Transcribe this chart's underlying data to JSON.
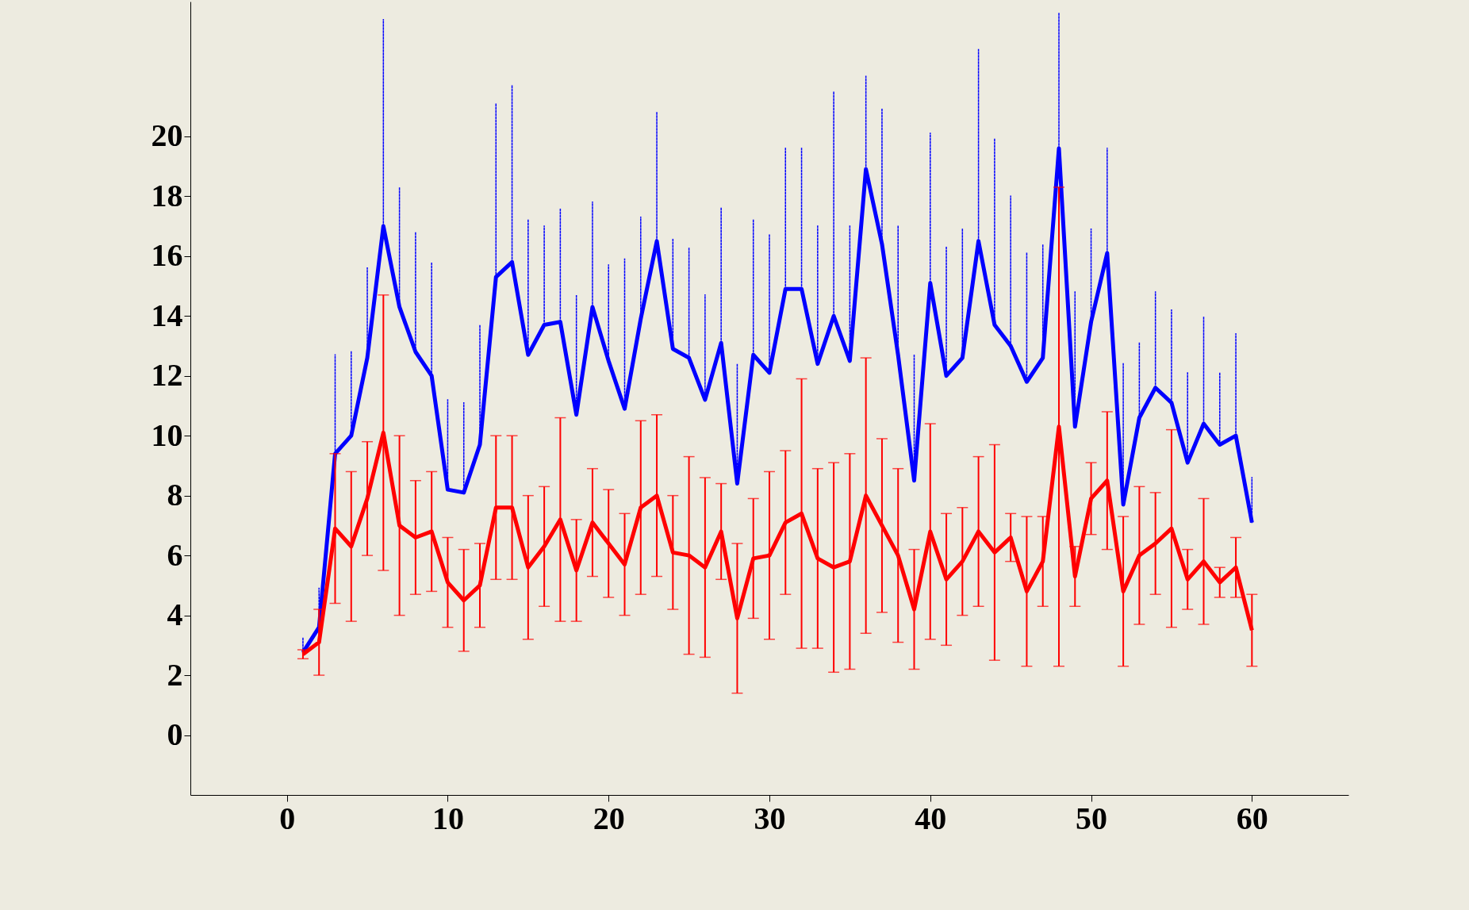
{
  "chart_data": {
    "type": "line",
    "x": [
      1,
      2,
      3,
      4,
      5,
      6,
      7,
      8,
      9,
      10,
      11,
      12,
      13,
      14,
      15,
      16,
      17,
      18,
      19,
      20,
      21,
      22,
      23,
      24,
      25,
      26,
      27,
      28,
      29,
      30,
      31,
      32,
      33,
      34,
      35,
      36,
      37,
      38,
      39,
      40,
      41,
      42,
      43,
      44,
      45,
      46,
      47,
      48,
      49,
      50,
      51,
      52,
      53,
      54,
      55,
      56,
      57,
      58,
      59,
      60
    ],
    "series": [
      {
        "color": "#0000ff",
        "line_style": "solid",
        "values": [
          2.76,
          3.6,
          9.4,
          10.0,
          12.6,
          17.0,
          14.3,
          12.8,
          12.0,
          8.2,
          8.1,
          9.7,
          15.3,
          15.8,
          12.7,
          13.7,
          13.8,
          10.7,
          14.3,
          12.5,
          10.9,
          13.9,
          16.5,
          12.9,
          12.6,
          11.2,
          13.1,
          8.4,
          12.7,
          12.1,
          14.9,
          14.9,
          12.4,
          14.0,
          12.5,
          18.9,
          16.4,
          12.7,
          8.5,
          15.1,
          12.0,
          12.6,
          16.5,
          13.7,
          13.0,
          11.8,
          12.6,
          19.6,
          10.3,
          13.8,
          16.1,
          7.7,
          10.6,
          11.6,
          11.1,
          9.1,
          10.4,
          9.7,
          10.0,
          7.1
        ],
        "errors": [
          0.5,
          1.3,
          3.3,
          2.8,
          3.0,
          6.9,
          4.0,
          4.0,
          3.8,
          3.0,
          3.0,
          4.0,
          5.8,
          5.9,
          4.5,
          3.3,
          3.8,
          4.0,
          3.5,
          3.2,
          5.0,
          3.4,
          4.3,
          3.7,
          3.7,
          3.5,
          4.5,
          4.0,
          4.5,
          4.6,
          4.7,
          4.7,
          4.6,
          7.5,
          4.5,
          3.1,
          4.5,
          4.3,
          4.2,
          5.0,
          4.3,
          4.3,
          6.4,
          6.2,
          5.0,
          4.3,
          3.8,
          4.5,
          4.5,
          3.1,
          3.5,
          4.7,
          2.5,
          3.2,
          3.1,
          3.0,
          3.6,
          2.4,
          3.4,
          1.5
        ]
      },
      {
        "color": "#ff0000",
        "line_style": "solid",
        "values": [
          2.7,
          3.1,
          6.9,
          6.3,
          7.9,
          10.1,
          7.0,
          6.6,
          6.8,
          5.1,
          4.5,
          5.0,
          7.6,
          7.6,
          5.6,
          6.3,
          7.2,
          5.5,
          7.1,
          6.4,
          5.7,
          7.6,
          8.0,
          6.1,
          6.0,
          5.6,
          6.8,
          3.9,
          5.9,
          6.0,
          7.1,
          7.4,
          5.9,
          5.6,
          5.8,
          8.0,
          7.0,
          6.0,
          4.2,
          6.8,
          5.2,
          5.8,
          6.8,
          6.1,
          6.6,
          4.8,
          5.8,
          10.3,
          5.3,
          7.9,
          8.5,
          4.8,
          6.0,
          6.4,
          6.9,
          5.2,
          5.8,
          5.1,
          5.6,
          3.5
        ],
        "errors": [
          0.15,
          1.1,
          2.5,
          2.5,
          1.9,
          4.6,
          3.0,
          1.9,
          2.0,
          1.5,
          1.7,
          1.4,
          2.4,
          2.4,
          2.4,
          2.0,
          3.4,
          1.7,
          1.8,
          1.8,
          1.7,
          2.9,
          2.7,
          1.9,
          3.3,
          3.0,
          1.6,
          2.5,
          2.0,
          2.8,
          2.4,
          4.5,
          3.0,
          3.5,
          3.6,
          4.6,
          2.9,
          2.9,
          2.0,
          3.6,
          2.2,
          1.8,
          2.5,
          3.6,
          0.8,
          2.5,
          1.5,
          8.0,
          1.0,
          1.2,
          2.3,
          2.5,
          2.3,
          1.7,
          3.3,
          1.0,
          2.1,
          0.5,
          1.0,
          1.2
        ]
      }
    ],
    "xlim": [
      -6,
      66
    ],
    "xticks": [
      0,
      10,
      20,
      30,
      40,
      50,
      60
    ],
    "ylim": [
      -2,
      24.5
    ],
    "yticks": [
      0,
      2,
      4,
      6,
      8,
      10,
      12,
      14,
      16,
      18,
      20
    ],
    "grid": false,
    "marker": "none"
  }
}
